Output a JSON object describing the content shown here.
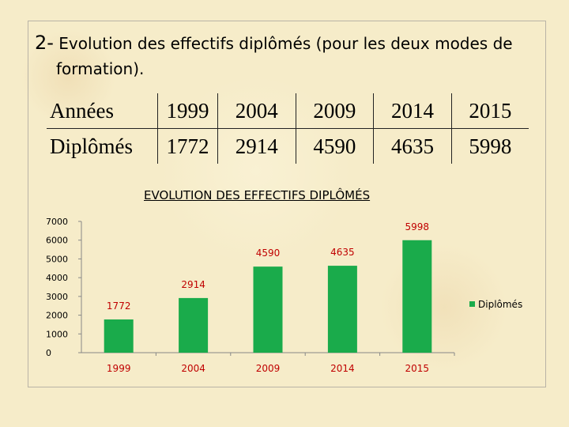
{
  "slide": {
    "number": "2-",
    "title_line1": "Evolution des effectifs diplômés (pour les deux modes de",
    "title_line2": "formation)."
  },
  "table": {
    "row1_label": "Années",
    "row2_label": "Diplômés",
    "years": [
      "1999",
      "2004",
      "2009",
      "2014",
      "2015"
    ],
    "values": [
      "1772",
      "2914",
      "4590",
      "4635",
      "5998"
    ]
  },
  "chart_data": {
    "type": "bar",
    "title": "EVOLUTION DES EFFECTIFS DIPLÔMÉS",
    "categories": [
      "1999",
      "2004",
      "2009",
      "2014",
      "2015"
    ],
    "series": [
      {
        "name": "Diplômés",
        "values": [
          1772,
          2914,
          4590,
          4635,
          5998
        ]
      }
    ],
    "ylim": [
      0,
      7000
    ],
    "yticks": [
      0,
      1000,
      2000,
      3000,
      4000,
      5000,
      6000,
      7000
    ],
    "ytick_labels": [
      "0",
      "1000",
      "2000",
      "3000",
      "4000",
      "5000",
      "6000",
      "7000"
    ],
    "data_labels": [
      "1772",
      "2914",
      "4590",
      "4635",
      "5998"
    ],
    "legend": "right",
    "bar_color": "#1aab4b",
    "category_label_color": "#c00000",
    "data_label_color": "#c00000"
  }
}
